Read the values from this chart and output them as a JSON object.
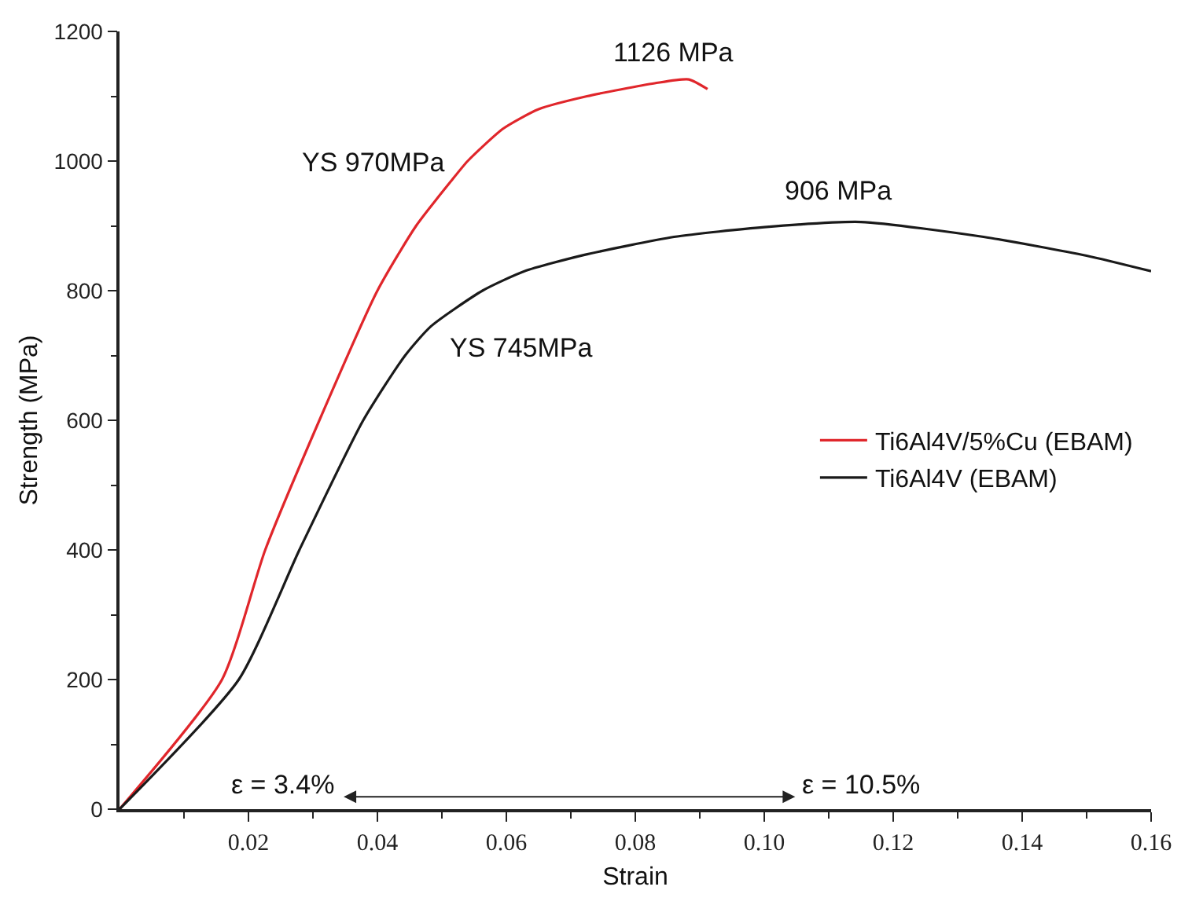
{
  "chart_data": {
    "type": "line",
    "xlabel": "Strain",
    "ylabel": "Strength (MPa)",
    "xlim": [
      0,
      0.16
    ],
    "ylim": [
      0,
      1200
    ],
    "xticks": [
      0.02,
      0.04,
      0.06,
      0.08,
      {
        "value": 0.1,
        "label": "0.10"
      },
      0.12,
      0.14,
      0.16
    ],
    "yticks": [
      0,
      200,
      400,
      600,
      800,
      1000,
      1200
    ],
    "legend": "right",
    "marker": "none",
    "line_style": "solid",
    "series": [
      {
        "name": "Ti6Al4V/5%Cu (EBAM)",
        "color": "#e0262b",
        "x": [
          0,
          0.0159,
          0.0226,
          0.031,
          0.04,
          0.046,
          0.0515,
          0.054,
          0.0595,
          0.065,
          0.0725,
          0.083,
          0.0883,
          0.0912
        ],
        "values": [
          0,
          200,
          400,
          600,
          800,
          900,
          970,
          1000,
          1050,
          1080,
          1100,
          1120,
          1126,
          1111
        ]
      },
      {
        "name": "Ti6Al4V (EBAM)",
        "color": "#1a1a1a",
        "x": [
          0,
          0.0185,
          0.0279,
          0.0378,
          0.0443,
          0.0483,
          0.0563,
          0.0628,
          0.072,
          0.086,
          0.1,
          0.115,
          0.134,
          0.15,
          0.16
        ],
        "values": [
          0,
          200,
          400,
          600,
          700,
          745,
          800,
          830,
          855,
          883,
          898,
          906,
          883,
          854,
          830
        ]
      }
    ],
    "annotations": [
      {
        "text": "1126 MPa",
        "x": 0.0883,
        "y": 1126
      },
      {
        "text": "906 MPa",
        "x": 0.115,
        "y": 906
      },
      {
        "text": "YS 970MPa",
        "x": 0.0515,
        "y": 970
      },
      {
        "text": "YS 745MPa",
        "x": 0.0483,
        "y": 745
      },
      "ε = 3.4%",
      "ε = 10.5%"
    ]
  }
}
